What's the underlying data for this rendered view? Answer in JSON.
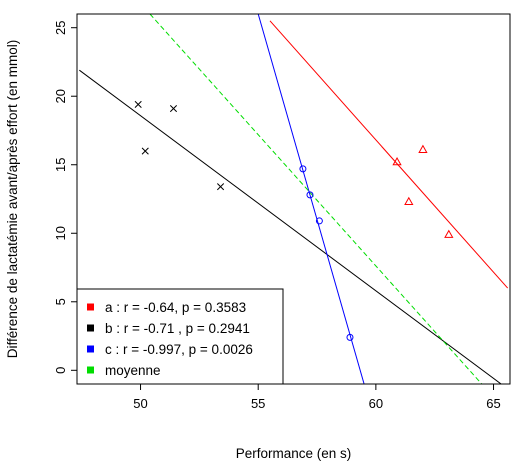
{
  "chart_data": {
    "type": "scatter",
    "title": "",
    "xlabel": "Performance (en s)",
    "ylabel": "Différence de lactatémie avant/après effort (en mmol)",
    "xlim": [
      47.3,
      65.7
    ],
    "ylim": [
      -1,
      26
    ],
    "xticks": [
      50,
      55,
      60,
      65
    ],
    "yticks": [
      0,
      5,
      10,
      15,
      20,
      25
    ],
    "grid": false,
    "legend_position": "bottom-left",
    "series": [
      {
        "name": "a : r = -0.64, p = 0.3583",
        "color": "#ff0000",
        "marker": "triangle",
        "points": [
          [
            60.9,
            15.2
          ],
          [
            61.4,
            12.3
          ],
          [
            62.0,
            16.1
          ],
          [
            63.1,
            9.9
          ]
        ],
        "line": [
          [
            55.5,
            25.5
          ],
          [
            65.6,
            6.0
          ]
        ]
      },
      {
        "name": "b : r = -0.71 , p = 0.2941",
        "color": "#000000",
        "marker": "x",
        "points": [
          [
            49.9,
            19.4
          ],
          [
            50.2,
            16.0
          ],
          [
            51.4,
            19.1
          ],
          [
            53.4,
            13.4
          ]
        ],
        "line": [
          [
            47.4,
            21.9
          ],
          [
            65.4,
            -1.1
          ]
        ]
      },
      {
        "name": "c : r = -0.997, p = 0.0026",
        "color": "#0000ff",
        "marker": "circle",
        "points": [
          [
            56.9,
            14.7
          ],
          [
            57.2,
            12.8
          ],
          [
            57.6,
            10.9
          ],
          [
            58.9,
            2.4
          ]
        ],
        "line": [
          [
            55.0,
            26.0
          ],
          [
            59.5,
            -1.0
          ]
        ]
      },
      {
        "name": "moyenne",
        "color": "#00dd00",
        "marker": "none",
        "line_style": "dashed",
        "line": [
          [
            50.4,
            26.0
          ],
          [
            64.5,
            -1.0
          ]
        ]
      }
    ]
  }
}
